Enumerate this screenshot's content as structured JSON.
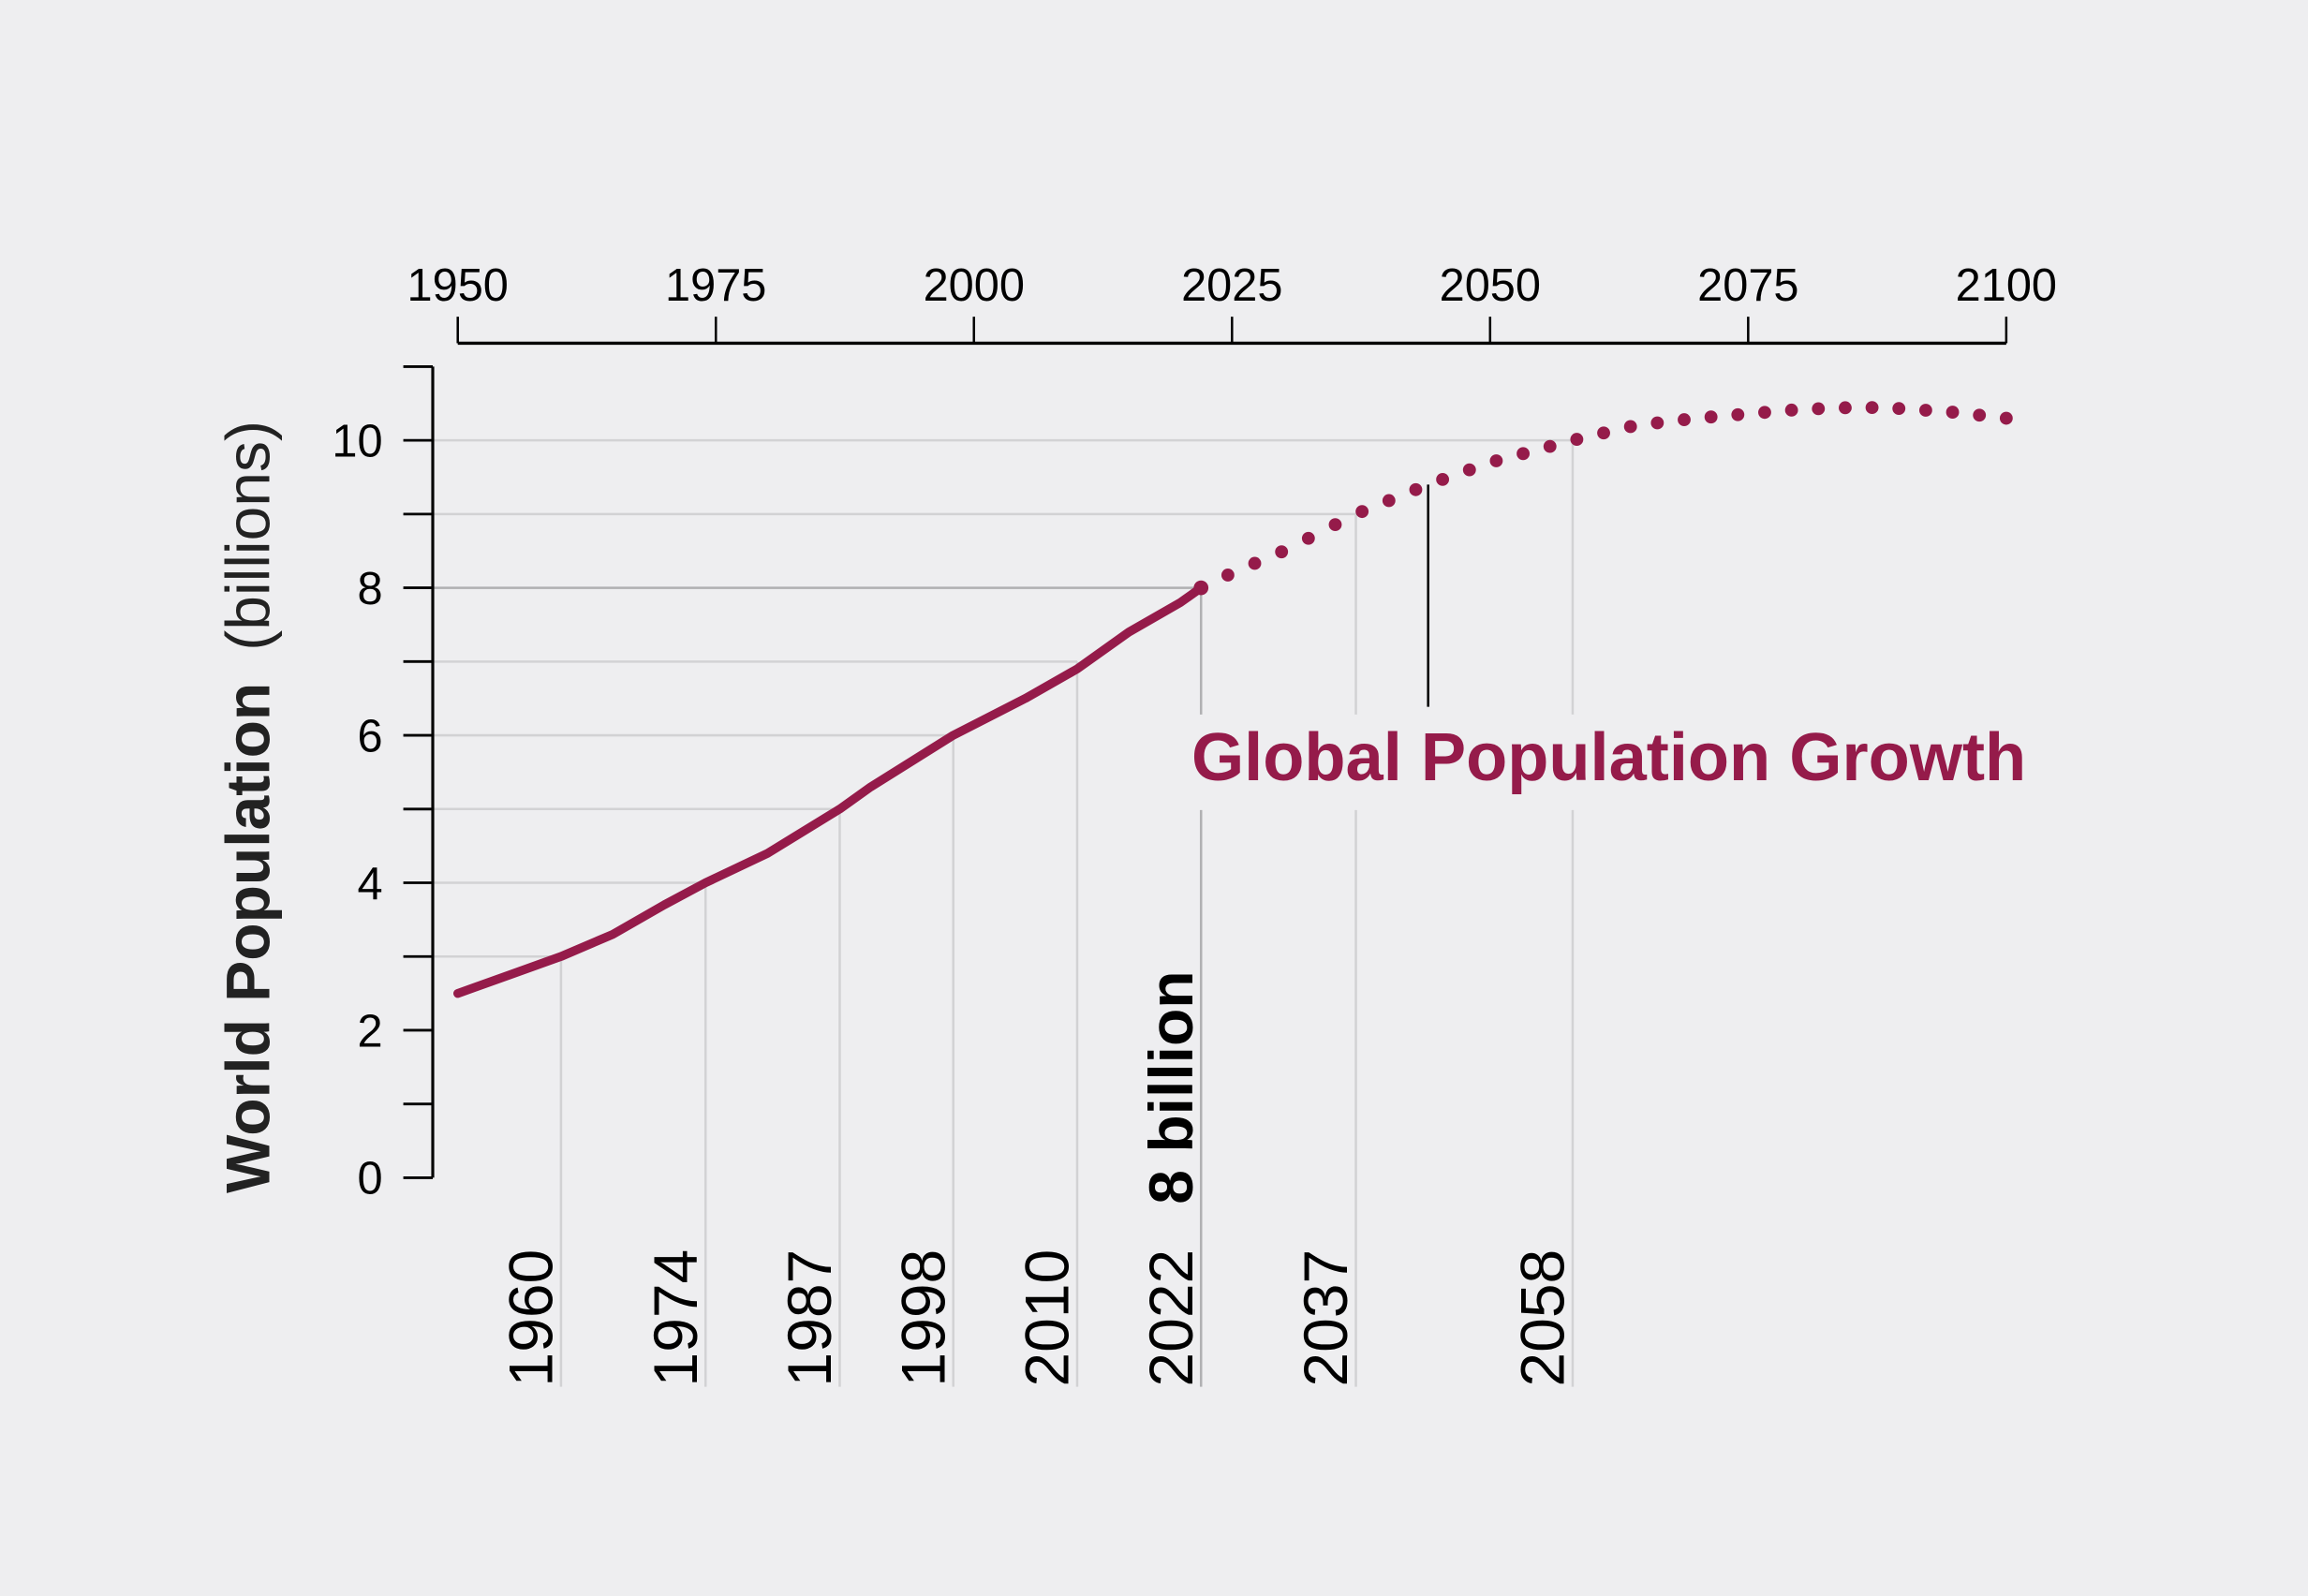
{
  "chart_data": {
    "type": "line",
    "title": "Global Population Growth",
    "ylabel_bold": "World Population",
    "ylabel_unit": "(billions)",
    "xlim": [
      1950,
      2100
    ],
    "ylim": [
      0,
      11
    ],
    "x_ticks": [
      "1950",
      "1975",
      "2000",
      "2025",
      "2050",
      "2075",
      "2100"
    ],
    "x_tick_values": [
      1950,
      1975,
      2000,
      2025,
      2050,
      2075,
      2100
    ],
    "x_axis_position": "top",
    "y_ticks": [
      "0",
      "2",
      "4",
      "6",
      "8",
      "10"
    ],
    "y_tick_values": [
      0,
      2,
      4,
      6,
      8,
      10
    ],
    "y_minor_ticks": [
      1,
      3,
      5,
      7,
      9,
      11
    ],
    "series": [
      {
        "style": "solid",
        "x": [
          1950,
          1955,
          1960,
          1965,
          1970,
          1974,
          1980,
          1987,
          1990,
          1998,
          2005,
          2010,
          2015,
          2020,
          2022
        ],
        "y": [
          2.5,
          2.75,
          3.0,
          3.3,
          3.7,
          4.0,
          4.4,
          5.0,
          5.3,
          6.0,
          6.5,
          6.9,
          7.4,
          7.8,
          8.0
        ]
      },
      {
        "style": "dotted",
        "x": [
          2022,
          2025,
          2030,
          2037,
          2044,
          2050,
          2058,
          2064,
          2070,
          2080,
          2086,
          2090,
          2095,
          2100
        ],
        "y": [
          8.0,
          8.2,
          8.5,
          9.0,
          9.4,
          9.7,
          10.0,
          10.2,
          10.3,
          10.42,
          10.45,
          10.43,
          10.38,
          10.3
        ]
      }
    ],
    "milestones": [
      {
        "year": "1960",
        "value": 3
      },
      {
        "year": "1974",
        "value": 4
      },
      {
        "year": "1987",
        "value": 5
      },
      {
        "year": "1998",
        "value": 6
      },
      {
        "year": "2010",
        "value": 7
      },
      {
        "year": "2022",
        "value": 8,
        "note": "8 billion"
      },
      {
        "year": "2037",
        "value": 9
      },
      {
        "year": "2058",
        "value": 10
      }
    ],
    "title_pointer_year": 2044,
    "colors": {
      "line": "#951b4a",
      "background": "#eeeef0",
      "grid": "#d2d2d4",
      "highlight_grid": "#b0b0b2",
      "axis": "#000000"
    }
  }
}
